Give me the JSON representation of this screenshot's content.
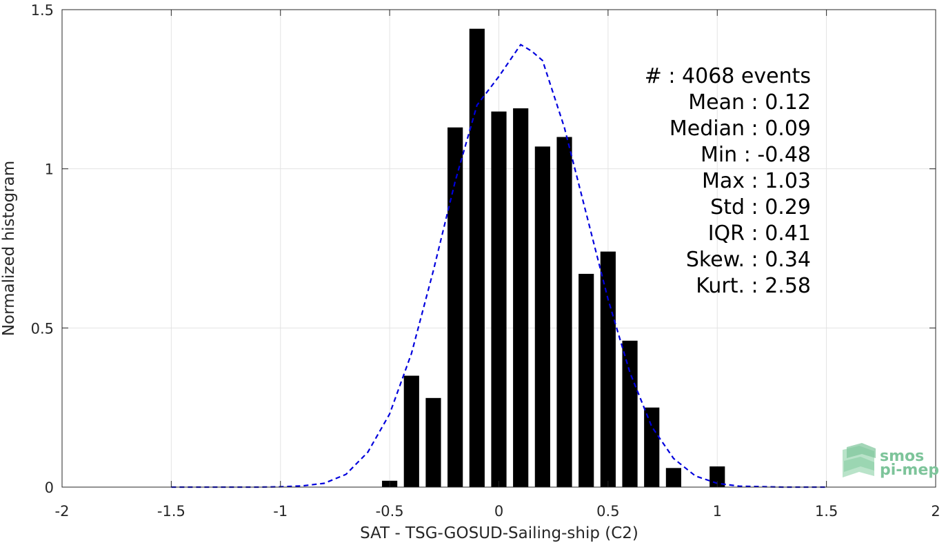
{
  "chart_data": {
    "type": "bar",
    "xlabel": "SAT - TSG-GOSUD-Sailing-ship (C2)",
    "ylabel": "Normalized histogram",
    "xlim": [
      -2,
      2
    ],
    "ylim": [
      0,
      1.5
    ],
    "x_ticks": [
      -2,
      -1.5,
      -1,
      -0.5,
      0,
      0.5,
      1,
      1.5,
      2
    ],
    "x_tick_labels": [
      "-2",
      "-1.5",
      "-1",
      "-0.5",
      "0",
      "0.5",
      "1",
      "1.5",
      "2"
    ],
    "y_ticks": [
      0,
      0.5,
      1,
      1.5
    ],
    "y_tick_labels": [
      "0",
      "0.5",
      "1",
      "1.5"
    ],
    "grid": true,
    "bar_width": 0.07,
    "bars": {
      "x": [
        -0.5,
        -0.4,
        -0.3,
        -0.2,
        -0.1,
        0.0,
        0.1,
        0.2,
        0.3,
        0.4,
        0.5,
        0.6,
        0.7,
        0.8,
        1.0
      ],
      "values": [
        0.02,
        0.35,
        0.28,
        1.13,
        1.44,
        1.18,
        1.19,
        1.07,
        1.1,
        0.67,
        0.74,
        0.46,
        0.25,
        0.06,
        0.065
      ],
      "color": "#000000"
    },
    "fit_curve": {
      "style": "dashed",
      "color": "#0000dd",
      "x": [
        -1.5,
        -1.3,
        -1.1,
        -1.0,
        -0.9,
        -0.8,
        -0.7,
        -0.6,
        -0.5,
        -0.4,
        -0.3,
        -0.2,
        -0.1,
        0.0,
        0.05,
        0.1,
        0.15,
        0.2,
        0.3,
        0.4,
        0.5,
        0.6,
        0.7,
        0.8,
        0.9,
        1.0,
        1.1,
        1.3,
        1.5
      ],
      "y": [
        0.0,
        0.0,
        0.0,
        0.001,
        0.004,
        0.012,
        0.04,
        0.11,
        0.23,
        0.42,
        0.68,
        0.96,
        1.2,
        1.29,
        1.34,
        1.39,
        1.37,
        1.34,
        1.13,
        0.86,
        0.59,
        0.36,
        0.19,
        0.09,
        0.035,
        0.012,
        0.003,
        0.0,
        0.0
      ]
    },
    "stats": [
      {
        "label": "#  : 4068 events"
      },
      {
        "label": "Mean : 0.12"
      },
      {
        "label": "Median : 0.09"
      },
      {
        "label": "Min : -0.48"
      },
      {
        "label": "Max : 1.03"
      },
      {
        "label": "Std : 0.29"
      },
      {
        "label": "IQR : 0.41"
      },
      {
        "label": "Skew. : 0.34"
      },
      {
        "label": "Kurt. : 2.58"
      }
    ]
  },
  "logo": {
    "line1": "smos",
    "line2": "pi-mep",
    "color": "#7dc49a"
  }
}
